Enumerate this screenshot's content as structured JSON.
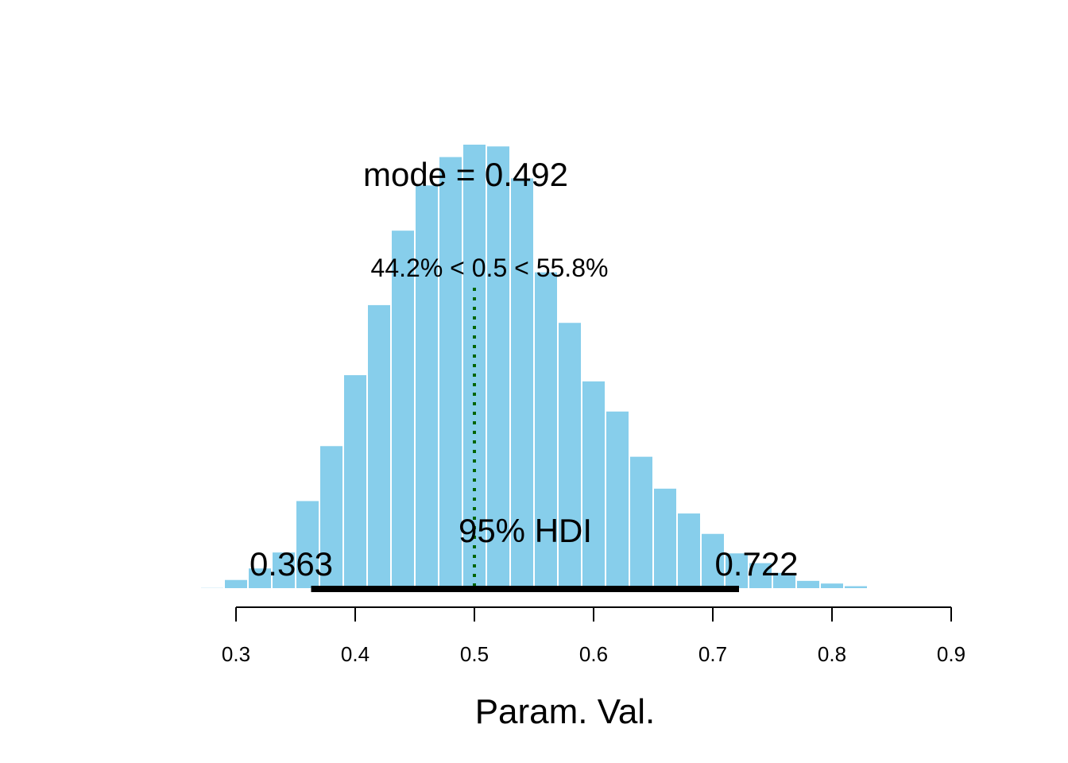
{
  "chart_data": {
    "type": "bar",
    "subtype": "histogram",
    "xlabel": "Param. Val.",
    "xlim": [
      0.28,
      0.9
    ],
    "x_ticks": [
      0.3,
      0.4,
      0.5,
      0.6,
      0.7,
      0.8,
      0.9
    ],
    "x_tick_labels": [
      "0.3",
      "0.4",
      "0.5",
      "0.6",
      "0.7",
      "0.8",
      "0.9"
    ],
    "y_axis_shown": false,
    "bin_width": 0.02,
    "bin_start": 0.27,
    "bin_counts": [
      2,
      11,
      24,
      42,
      100,
      162,
      242,
      321,
      405,
      456,
      488,
      502,
      500,
      464,
      358,
      301,
      235,
      201,
      150,
      114,
      86,
      63,
      41,
      30,
      19,
      10,
      7,
      4,
      0
    ],
    "bar_color": "#87CEEB",
    "mode_label": "mode = 0.492",
    "comparison": {
      "value": 0.5,
      "label": "44.2% < 0.5 < 55.8%",
      "color": "#006400",
      "line_style": "dotted"
    },
    "hdi": {
      "low": 0.363,
      "high": 0.722,
      "label": "95% HDI",
      "low_label": "0.363",
      "high_label": "0.722",
      "color": "#000000"
    }
  }
}
